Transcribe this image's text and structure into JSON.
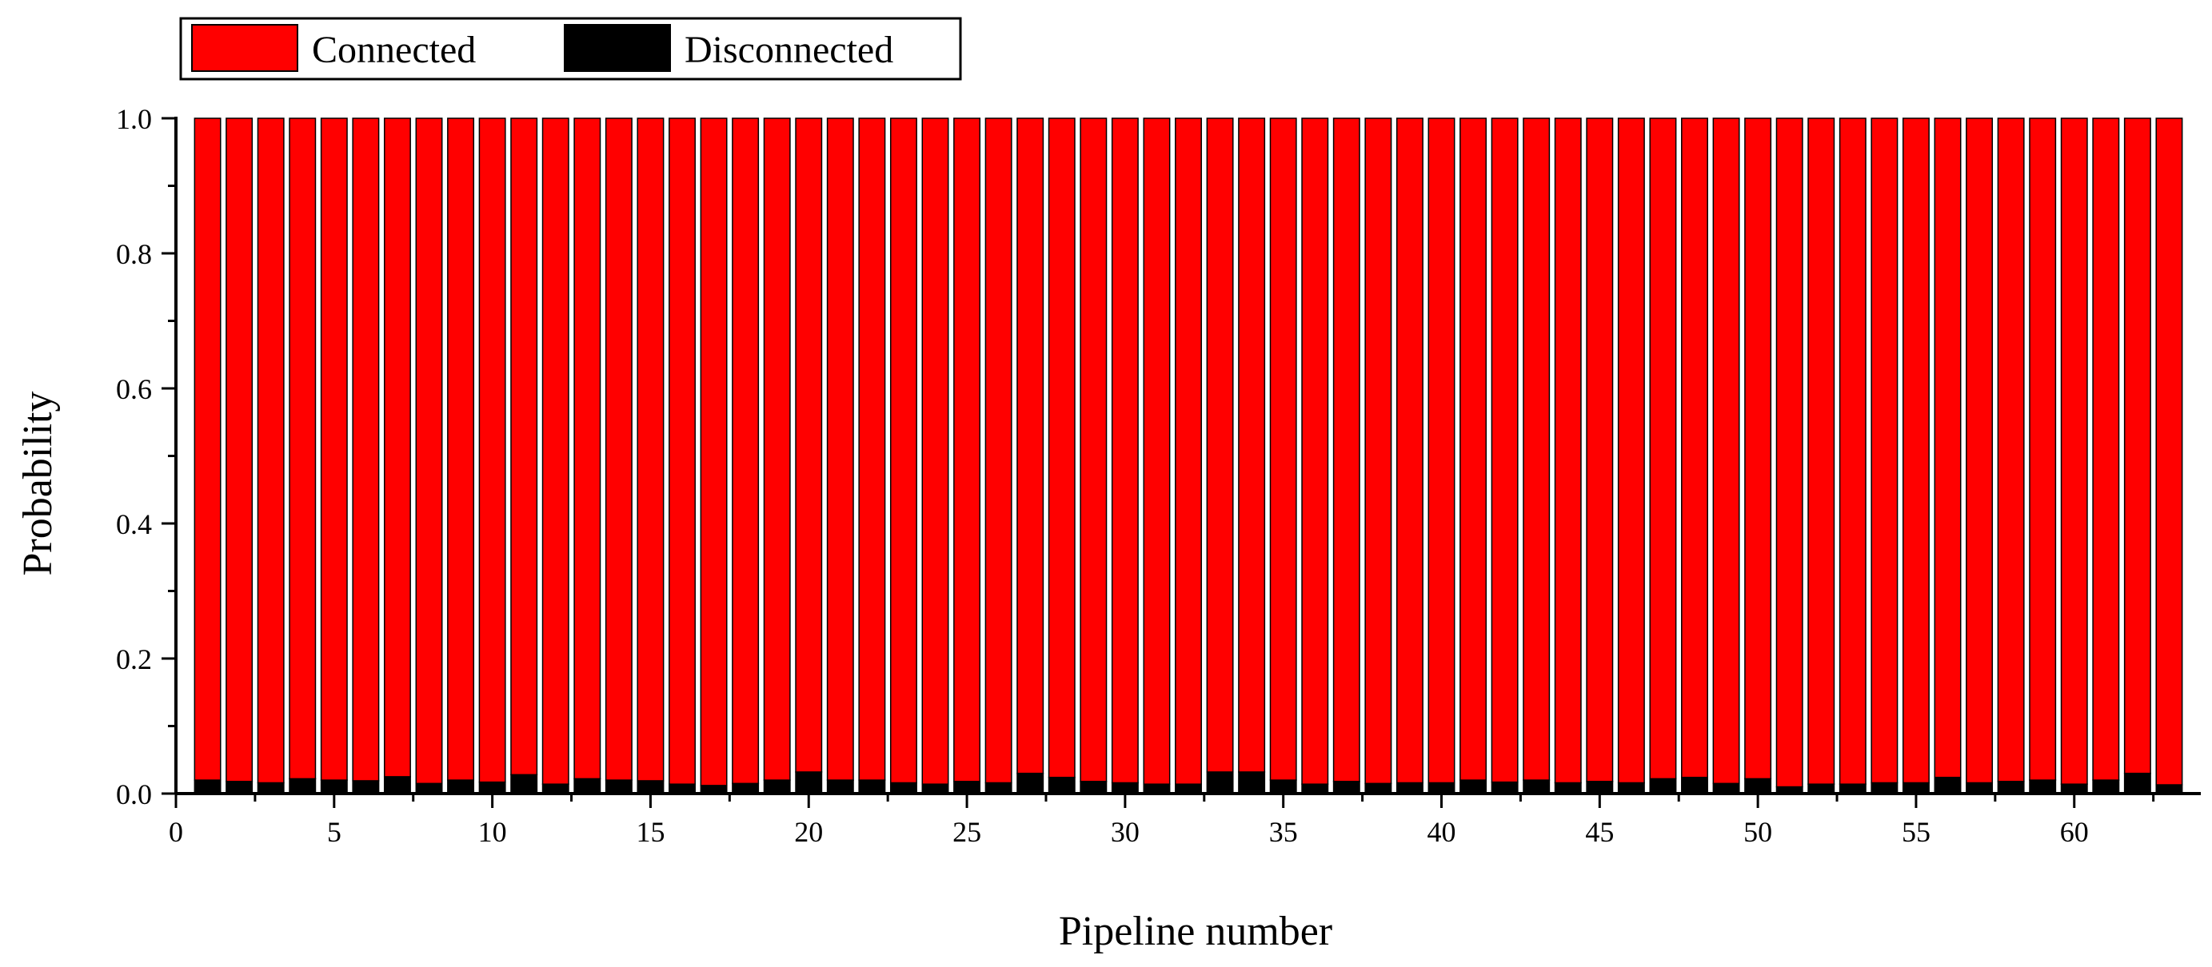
{
  "chart_data": {
    "type": "bar",
    "stacked": true,
    "title": "",
    "xlabel": "Pipeline number",
    "ylabel": "Probability",
    "xlim": [
      0,
      64
    ],
    "ylim": [
      0,
      1.0
    ],
    "x_ticks": [
      0,
      5,
      10,
      15,
      20,
      25,
      30,
      35,
      40,
      45,
      50,
      55,
      60
    ],
    "y_ticks": [
      0.0,
      0.2,
      0.4,
      0.6,
      0.8,
      1.0
    ],
    "y_tick_labels": [
      "0.0",
      "0.2",
      "0.4",
      "0.6",
      "0.8",
      "1.0"
    ],
    "legend_position": "top-left-outside",
    "categories": [
      1,
      2,
      3,
      4,
      5,
      6,
      7,
      8,
      9,
      10,
      11,
      12,
      13,
      14,
      15,
      16,
      17,
      18,
      19,
      20,
      21,
      22,
      23,
      24,
      25,
      26,
      27,
      28,
      29,
      30,
      31,
      32,
      33,
      34,
      35,
      36,
      37,
      38,
      39,
      40,
      41,
      42,
      43,
      44,
      45,
      46,
      47,
      48,
      49,
      50,
      51,
      52,
      53,
      54,
      55,
      56,
      57,
      58,
      59,
      60,
      61,
      62,
      63
    ],
    "series": [
      {
        "name": "Disconnected",
        "color": "#000000",
        "values": [
          0.02,
          0.018,
          0.016,
          0.022,
          0.02,
          0.019,
          0.025,
          0.015,
          0.02,
          0.017,
          0.028,
          0.014,
          0.022,
          0.02,
          0.019,
          0.014,
          0.012,
          0.015,
          0.02,
          0.032,
          0.02,
          0.02,
          0.016,
          0.014,
          0.018,
          0.016,
          0.03,
          0.024,
          0.018,
          0.016,
          0.014,
          0.014,
          0.032,
          0.032,
          0.02,
          0.014,
          0.018,
          0.015,
          0.016,
          0.016,
          0.02,
          0.017,
          0.02,
          0.016,
          0.018,
          0.016,
          0.022,
          0.024,
          0.015,
          0.022,
          0.01,
          0.014,
          0.014,
          0.016,
          0.016,
          0.024,
          0.016,
          0.018,
          0.02,
          0.014,
          0.02,
          0.03,
          0.013
        ]
      },
      {
        "name": "Connected",
        "color": "#ff0000",
        "values": [
          0.98,
          0.982,
          0.984,
          0.978,
          0.98,
          0.981,
          0.975,
          0.985,
          0.98,
          0.983,
          0.972,
          0.986,
          0.978,
          0.98,
          0.981,
          0.986,
          0.988,
          0.985,
          0.98,
          0.968,
          0.98,
          0.98,
          0.984,
          0.986,
          0.982,
          0.984,
          0.97,
          0.976,
          0.982,
          0.984,
          0.986,
          0.986,
          0.968,
          0.968,
          0.98,
          0.986,
          0.982,
          0.985,
          0.984,
          0.984,
          0.98,
          0.983,
          0.98,
          0.984,
          0.982,
          0.984,
          0.978,
          0.976,
          0.985,
          0.978,
          0.99,
          0.986,
          0.986,
          0.984,
          0.984,
          0.976,
          0.984,
          0.982,
          0.98,
          0.986,
          0.98,
          0.97,
          0.987
        ]
      }
    ],
    "legend": [
      {
        "label": "Connected",
        "color": "#ff0000"
      },
      {
        "label": "Disconnected",
        "color": "#000000"
      }
    ]
  }
}
